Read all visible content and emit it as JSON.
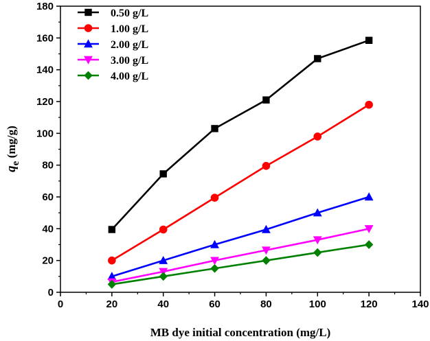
{
  "chart_data": {
    "type": "line",
    "title": "",
    "xlabel": "MB dye initial concentration (mg/L)",
    "ylabel": {
      "symbol": "q",
      "subscript": "e",
      "unit": " (mg/g)"
    },
    "xlim": [
      0,
      140
    ],
    "ylim": [
      0,
      180
    ],
    "xticks": [
      0,
      20,
      40,
      60,
      80,
      100,
      120,
      140
    ],
    "yticks": [
      0,
      20,
      40,
      60,
      80,
      100,
      120,
      140,
      160,
      180
    ],
    "x": [
      20,
      40,
      60,
      80,
      100,
      120
    ],
    "legend_position": "top-left",
    "series": [
      {
        "name": "0.50 g/L",
        "color": "#000000",
        "marker": "square",
        "values": [
          39.5,
          74.5,
          103,
          121,
          147,
          158.5
        ]
      },
      {
        "name": "1.00 g/L",
        "color": "#ff0000",
        "marker": "circle",
        "values": [
          20,
          39.5,
          59.5,
          79.5,
          98,
          118
        ]
      },
      {
        "name": "2.00 g/L",
        "color": "#0000ff",
        "marker": "triangle-up",
        "values": [
          10,
          20,
          30,
          39.5,
          50,
          60
        ]
      },
      {
        "name": "3.00 g/L",
        "color": "#ff00ff",
        "marker": "triangle-down",
        "values": [
          6.5,
          13,
          20,
          26.5,
          33,
          40
        ]
      },
      {
        "name": "4.00 g/L",
        "color": "#008000",
        "marker": "diamond",
        "values": [
          5,
          10,
          15,
          20,
          25,
          30
        ]
      }
    ]
  }
}
